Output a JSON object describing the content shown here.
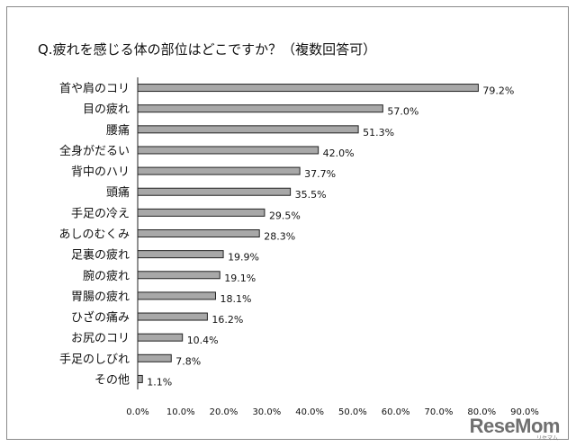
{
  "title": "Q.疲れを感じる体の部位はどこですか？（複数回答可）",
  "watermark": "ReseMom",
  "watermark_sub": "リセマム",
  "colors": {
    "bar": "#a8a8a8",
    "bar_stroke": "#222222",
    "axis": "#222222"
  },
  "chart_data": {
    "type": "bar",
    "orientation": "horizontal",
    "title": "Q.疲れを感じる体の部位はどこですか？（複数回答可）",
    "xlabel": "",
    "ylabel": "",
    "xlim": [
      0,
      90
    ],
    "grid": false,
    "categories": [
      "首や肩のコリ",
      "目の疲れ",
      "腰痛",
      "全身がだるい",
      "背中のハリ",
      "頭痛",
      "手足の冷え",
      "あしのむくみ",
      "足裏の疲れ",
      "腕の疲れ",
      "胃腸の疲れ",
      "ひざの痛み",
      "お尻のコリ",
      "手足のしびれ",
      "その他"
    ],
    "values": [
      79.2,
      57.0,
      51.3,
      42.0,
      37.7,
      35.5,
      29.5,
      28.3,
      19.9,
      19.1,
      18.1,
      16.2,
      10.4,
      7.8,
      1.1
    ],
    "value_labels": [
      "79.2%",
      "57.0%",
      "51.3%",
      "42.0%",
      "37.7%",
      "35.5%",
      "29.5%",
      "28.3%",
      "19.9%",
      "19.1%",
      "18.1%",
      "16.2%",
      "10.4%",
      "7.8%",
      "1.1%"
    ],
    "ticks": [
      0,
      10,
      20,
      30,
      40,
      50,
      60,
      70,
      80,
      90
    ],
    "tick_labels": [
      "0.0%",
      "10.0%",
      "20.0%",
      "30.0%",
      "40.0%",
      "50.0%",
      "60.0%",
      "70.0%",
      "80.0%",
      "90.0%"
    ]
  }
}
